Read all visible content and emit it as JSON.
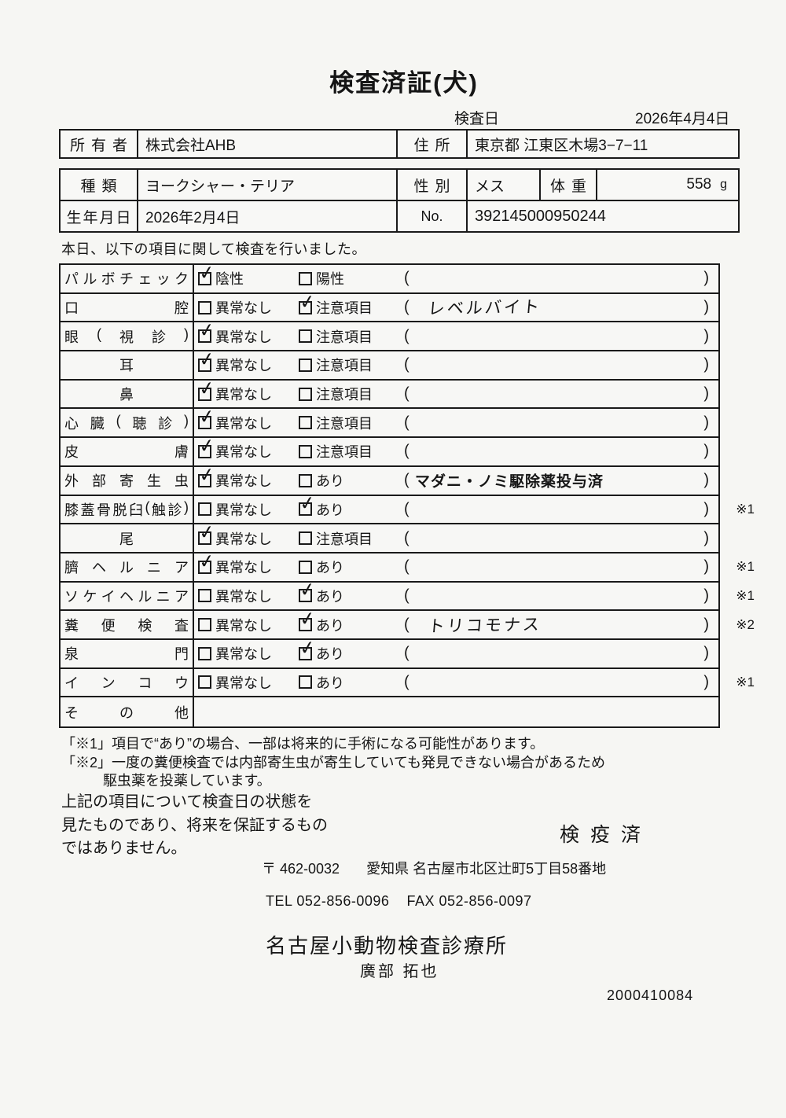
{
  "page": {
    "title": "検査済証(犬)"
  },
  "inspection_date": {
    "label": "検査日",
    "value": "2026年4月4日"
  },
  "owner_row": {
    "owner_label": "所有者",
    "owner": "株式会社AHB",
    "address_label": "住所",
    "address": "東京都 江東区木場3−7−11"
  },
  "info": {
    "breed_label": "種類",
    "breed": "ヨークシャー・テリア",
    "sex_label": "性別",
    "sex": "メス",
    "weight_label": "体重",
    "weight": "558",
    "weight_unit": "g",
    "birth_label": "生年月日",
    "birth": "2026年2月4日",
    "no_label": "No.",
    "no": "392145000950244"
  },
  "intro": "本日、以下の項目に関して検査を行いました。",
  "checklist": {
    "paren_open": "(",
    "paren_close": ")",
    "rows": [
      {
        "label": "パルボチェック",
        "opt1": "陰性",
        "mark1": "✓",
        "opt2": "陽性",
        "mark2": "",
        "paren": "",
        "note": ""
      },
      {
        "label": "口腔",
        "opt1": "異常なし",
        "mark1": "",
        "opt2": "注意項目",
        "mark2": "✓",
        "paren": "レベルバイト",
        "note": ""
      },
      {
        "label": "眼(視診)",
        "opt1": "異常なし",
        "mark1": "✓",
        "opt2": "注意項目",
        "mark2": "",
        "paren": "",
        "note": ""
      },
      {
        "label": "耳",
        "opt1": "異常なし",
        "mark1": "✓",
        "opt2": "注意項目",
        "mark2": "",
        "paren": "",
        "note": ""
      },
      {
        "label": "鼻",
        "opt1": "異常なし",
        "mark1": "✓",
        "opt2": "注意項目",
        "mark2": "",
        "paren": "",
        "note": ""
      },
      {
        "label": "心臓(聴診)",
        "opt1": "異常なし",
        "mark1": "✓",
        "opt2": "注意項目",
        "mark2": "",
        "paren": "",
        "note": ""
      },
      {
        "label": "皮膚",
        "opt1": "異常なし",
        "mark1": "✓",
        "opt2": "注意項目",
        "mark2": "",
        "paren": "",
        "note": ""
      },
      {
        "label": "外部寄生虫",
        "opt1": "異常なし",
        "mark1": "✓",
        "opt2": "あり",
        "mark2": "",
        "paren": "マダニ・ノミ駆除薬投与済",
        "note": ""
      },
      {
        "label": "膝蓋骨脱臼(触診)",
        "opt1": "異常なし",
        "mark1": "",
        "opt2": "あり",
        "mark2": "✓",
        "paren": "",
        "note": "※1"
      },
      {
        "label": "尾",
        "opt1": "異常なし",
        "mark1": "✓",
        "opt2": "注意項目",
        "mark2": "",
        "paren": "",
        "note": ""
      },
      {
        "label": "臍ヘルニア",
        "opt1": "異常なし",
        "mark1": "✓",
        "opt2": "あり",
        "mark2": "",
        "paren": "",
        "note": "※1"
      },
      {
        "label": "ソケイヘルニア",
        "opt1": "異常なし",
        "mark1": "",
        "opt2": "あり",
        "mark2": "✓",
        "paren": "",
        "note": "※1"
      },
      {
        "label": "糞便検査",
        "opt1": "異常なし",
        "mark1": "",
        "opt2": "あり",
        "mark2": "✓",
        "paren": "トリコモナス",
        "note": "※2"
      },
      {
        "label": "泉門",
        "opt1": "異常なし",
        "mark1": "",
        "opt2": "あり",
        "mark2": "✓",
        "paren": "",
        "note": ""
      },
      {
        "label": "インコウ",
        "opt1": "異常なし",
        "mark1": "",
        "opt2": "あり",
        "mark2": "",
        "paren": "",
        "note": "※1"
      },
      {
        "label": "その他",
        "opt1": "",
        "mark1": "",
        "opt2": "",
        "mark2": "",
        "paren": "",
        "note": ""
      }
    ]
  },
  "footnotes": {
    "f1": "「※1」項目で“あり”の場合、一部は将来的に手術になる可能性があります。",
    "f2": "「※2」一度の糞便検査では内部寄生虫が寄生していても発見できない場合があるため\n駆虫薬を投薬しています。"
  },
  "disclaimer": "上記の項目について検査日の状態を\n見たものであり、将来を保証するもの\nではありません。",
  "stamp": "検疫済",
  "clinic": {
    "postal": "〒 462-0032",
    "address": "愛知県 名古屋市北区辻町5丁目58番地",
    "tel": "TEL 052-856-0096",
    "fax": "FAX 052-856-0097",
    "name": "名古屋小動物検査診療所",
    "veterinarian": "廣部 拓也"
  },
  "serial": "2000410084"
}
